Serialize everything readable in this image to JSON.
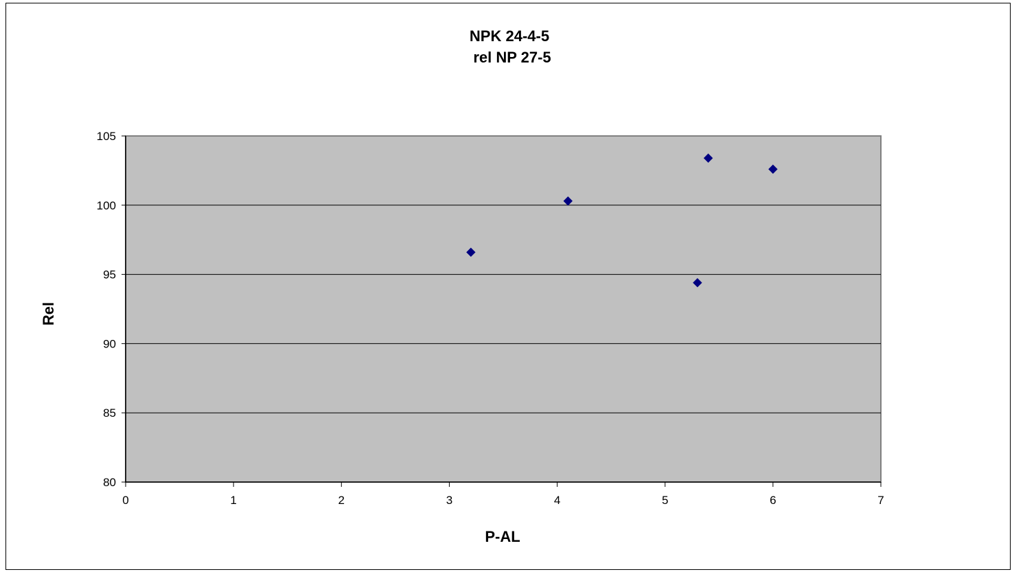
{
  "chart_data": {
    "type": "scatter",
    "title": "NPK 24-4-5",
    "subtitle": "rel NP 27-5",
    "xlabel": "P-AL",
    "ylabel": "Rel",
    "xlim": [
      0,
      7
    ],
    "ylim": [
      80,
      105
    ],
    "xticks": [
      0,
      1,
      2,
      3,
      4,
      5,
      6,
      7
    ],
    "yticks": [
      80,
      85,
      90,
      95,
      100,
      105
    ],
    "grid": "horizontal",
    "legend": "none",
    "series": [
      {
        "points": [
          {
            "x": 3.2,
            "y": 96.6
          },
          {
            "x": 4.1,
            "y": 100.3
          },
          {
            "x": 5.3,
            "y": 94.4
          },
          {
            "x": 5.4,
            "y": 103.4
          },
          {
            "x": 6.0,
            "y": 102.6
          }
        ]
      }
    ],
    "colors": {
      "plot_background": "#c0c0c0",
      "marker": "#000080",
      "gridline": "#000000"
    }
  }
}
